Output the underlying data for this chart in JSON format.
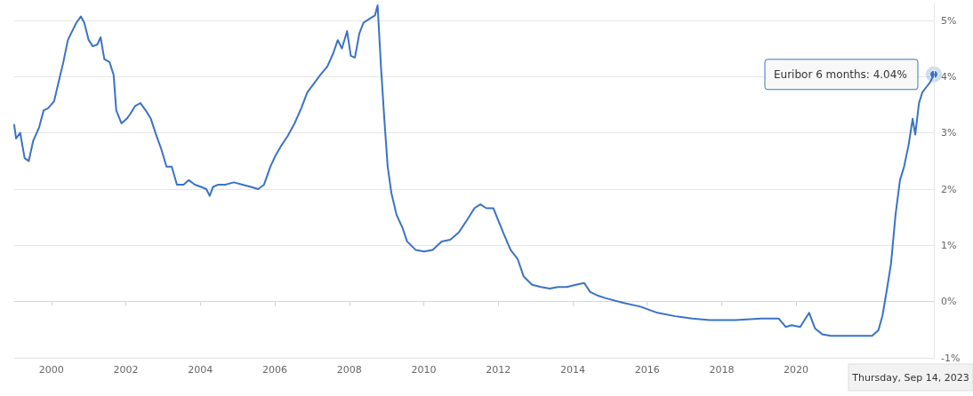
{
  "chart_data": {
    "type": "line",
    "x": [
      1999.0,
      1999.05,
      1999.16,
      1999.28,
      1999.39,
      1999.51,
      1999.67,
      1999.79,
      1999.91,
      2000.07,
      2000.18,
      2000.32,
      2000.44,
      2000.58,
      2000.67,
      2000.79,
      2000.88,
      2001.0,
      2001.11,
      2001.23,
      2001.32,
      2001.42,
      2001.56,
      2001.67,
      2001.74,
      2001.88,
      2002.02,
      2002.11,
      2002.25,
      2002.39,
      2002.53,
      2002.67,
      2002.81,
      2002.95,
      2003.09,
      2003.23,
      2003.37,
      2003.55,
      2003.69,
      2003.85,
      2004.02,
      2004.16,
      2004.25,
      2004.34,
      2004.48,
      2004.67,
      2004.9,
      2005.13,
      2005.36,
      2005.55,
      2005.71,
      2005.88,
      2006.02,
      2006.18,
      2006.34,
      2006.53,
      2006.71,
      2006.87,
      2007.04,
      2007.22,
      2007.41,
      2007.57,
      2007.69,
      2007.8,
      2007.94,
      2008.04,
      2008.15,
      2008.27,
      2008.38,
      2008.57,
      2008.69,
      2008.76,
      2008.85,
      2008.94,
      2009.03,
      2009.13,
      2009.27,
      2009.43,
      2009.55,
      2009.78,
      2010.01,
      2010.24,
      2010.48,
      2010.71,
      2010.94,
      2011.17,
      2011.36,
      2011.52,
      2011.68,
      2011.87,
      2011.99,
      2012.15,
      2012.33,
      2012.52,
      2012.68,
      2012.91,
      2013.15,
      2013.38,
      2013.61,
      2013.84,
      2014.08,
      2014.31,
      2014.47,
      2014.66,
      2014.89,
      2015.35,
      2015.82,
      2016.28,
      2016.75,
      2017.21,
      2017.68,
      2018.37,
      2019.07,
      2019.53,
      2019.72,
      2019.88,
      2020.11,
      2020.35,
      2020.51,
      2020.7,
      2020.93,
      2021.39,
      2021.86,
      2022.04,
      2022.21,
      2022.32,
      2022.44,
      2022.55,
      2022.67,
      2022.79,
      2022.9,
      2023.02,
      2023.13,
      2023.2,
      2023.3,
      2023.39,
      2023.48,
      2023.6,
      2023.7
    ],
    "series": [
      {
        "color": "#3a73c4",
        "values": [
          3.14,
          2.9,
          3.0,
          2.55,
          2.5,
          2.86,
          3.1,
          3.4,
          3.44,
          3.56,
          3.87,
          4.26,
          4.65,
          4.84,
          4.96,
          5.07,
          4.96,
          4.65,
          4.54,
          4.57,
          4.7,
          4.31,
          4.26,
          4.03,
          3.4,
          3.17,
          3.25,
          3.33,
          3.48,
          3.53,
          3.4,
          3.25,
          2.97,
          2.71,
          2.4,
          2.4,
          2.08,
          2.08,
          2.16,
          2.08,
          2.04,
          2.0,
          1.88,
          2.04,
          2.08,
          2.08,
          2.12,
          2.08,
          2.04,
          2.0,
          2.08,
          2.4,
          2.6,
          2.78,
          2.94,
          3.17,
          3.44,
          3.72,
          3.87,
          4.03,
          4.18,
          4.42,
          4.65,
          4.5,
          4.81,
          4.37,
          4.34,
          4.77,
          4.96,
          5.04,
          5.09,
          5.27,
          4.18,
          3.25,
          2.4,
          1.93,
          1.54,
          1.31,
          1.07,
          0.92,
          0.89,
          0.92,
          1.07,
          1.1,
          1.23,
          1.46,
          1.66,
          1.73,
          1.66,
          1.66,
          1.46,
          1.2,
          0.92,
          0.76,
          0.45,
          0.3,
          0.26,
          0.23,
          0.26,
          0.26,
          0.3,
          0.33,
          0.17,
          0.11,
          0.06,
          -0.02,
          -0.09,
          -0.2,
          -0.26,
          -0.3,
          -0.33,
          -0.33,
          -0.3,
          -0.3,
          -0.45,
          -0.42,
          -0.45,
          -0.2,
          -0.48,
          -0.58,
          -0.61,
          -0.61,
          -0.61,
          -0.61,
          -0.51,
          -0.25,
          0.22,
          0.68,
          1.54,
          2.16,
          2.4,
          2.78,
          3.25,
          2.97,
          3.53,
          3.72,
          3.8,
          3.9,
          4.04
        ]
      }
    ],
    "xlim": [
      1999,
      2023.7
    ],
    "xticks": [
      2000,
      2002,
      2004,
      2006,
      2008,
      2010,
      2012,
      2014,
      2016,
      2018,
      2020
    ],
    "ylim": [
      -1,
      5.3
    ],
    "yticks": [
      {
        "value": -1,
        "label": "-1%"
      },
      {
        "value": 0,
        "label": "0%"
      },
      {
        "value": 1,
        "label": "1%"
      },
      {
        "value": 2,
        "label": "2%"
      },
      {
        "value": 3,
        "label": "3%"
      },
      {
        "value": 4,
        "label": "4%"
      },
      {
        "value": 5,
        "label": "5%"
      }
    ],
    "grid": "y",
    "marker": "none",
    "line_style": "solid",
    "annotations": [
      {
        "text": "Euribor 6 months: 4.04%",
        "x": 2023.7,
        "y": 4.04
      },
      "Thursday, Sep 14, 2023"
    ]
  }
}
